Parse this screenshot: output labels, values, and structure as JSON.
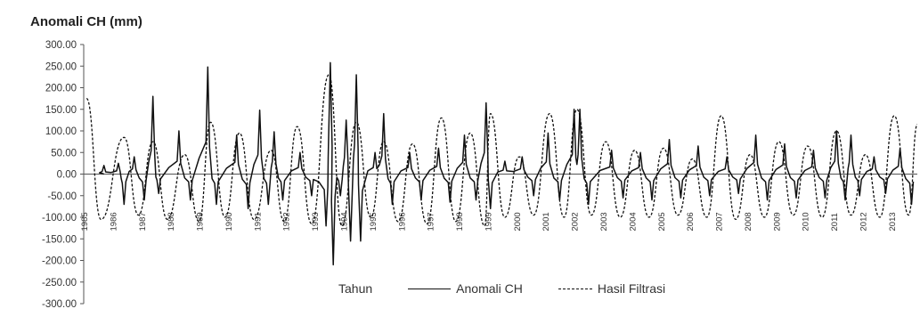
{
  "chart_data": {
    "type": "line",
    "title": "Anomali CH (mm)",
    "xlabel": "Tahun",
    "ylabel": "",
    "ylim": [
      -300,
      300
    ],
    "yticks": [
      "300.00",
      "250.00",
      "200.00",
      "150.00",
      "100.00",
      "50.00",
      "0.00",
      "-50.00",
      "-100.00",
      "-150.00",
      "-200.00",
      "-250.00",
      "-300.00"
    ],
    "x_tick_labels": [
      "1985",
      "1986",
      "1987",
      "1988",
      "1989",
      "1990",
      "1991",
      "1992",
      "1993",
      "1994",
      "1995",
      "1996",
      "1997",
      "1998",
      "1999",
      "2000",
      "2001",
      "2002",
      "2003",
      "2004",
      "2005",
      "2006",
      "2007",
      "2008",
      "2009",
      "2010",
      "2011",
      "2012",
      "2013"
    ],
    "x_start": 1985,
    "x_end": 2013.9,
    "series": [
      {
        "name": "Anomali CH",
        "style": "solid",
        "peaks": [
          {
            "x": 1985.7,
            "y": 20
          },
          {
            "x": 1986.2,
            "y": 25
          },
          {
            "x": 1986.4,
            "y": -70
          },
          {
            "x": 1986.75,
            "y": 40
          },
          {
            "x": 1987.1,
            "y": -60
          },
          {
            "x": 1987.4,
            "y": 180
          },
          {
            "x": 1987.6,
            "y": -45
          },
          {
            "x": 1988.3,
            "y": 100
          },
          {
            "x": 1988.7,
            "y": -60
          },
          {
            "x": 1989.3,
            "y": 248
          },
          {
            "x": 1989.6,
            "y": -70
          },
          {
            "x": 1990.3,
            "y": 90
          },
          {
            "x": 1990.7,
            "y": -80
          },
          {
            "x": 1991.1,
            "y": 148
          },
          {
            "x": 1991.4,
            "y": -70
          },
          {
            "x": 1991.6,
            "y": 98
          },
          {
            "x": 1991.9,
            "y": -60
          },
          {
            "x": 1992.5,
            "y": 50
          },
          {
            "x": 1992.9,
            "y": -50
          },
          {
            "x": 1993.4,
            "y": -120
          },
          {
            "x": 1993.55,
            "y": 258
          },
          {
            "x": 1993.65,
            "y": -210
          },
          {
            "x": 1993.9,
            "y": -50
          },
          {
            "x": 1994.1,
            "y": 125
          },
          {
            "x": 1994.25,
            "y": -155
          },
          {
            "x": 1994.45,
            "y": 230
          },
          {
            "x": 1994.6,
            "y": -155
          },
          {
            "x": 1995.1,
            "y": 50
          },
          {
            "x": 1995.4,
            "y": 140
          },
          {
            "x": 1995.7,
            "y": -70
          },
          {
            "x": 1996.3,
            "y": 50
          },
          {
            "x": 1996.7,
            "y": -60
          },
          {
            "x": 1997.3,
            "y": 60
          },
          {
            "x": 1997.7,
            "y": -65
          },
          {
            "x": 1998.2,
            "y": 90
          },
          {
            "x": 1998.6,
            "y": -60
          },
          {
            "x": 1998.95,
            "y": 165
          },
          {
            "x": 1999.1,
            "y": -80
          },
          {
            "x": 1999.6,
            "y": 30
          },
          {
            "x": 2000.2,
            "y": 40
          },
          {
            "x": 2000.6,
            "y": -50
          },
          {
            "x": 2001.1,
            "y": 95
          },
          {
            "x": 2001.5,
            "y": -60
          },
          {
            "x": 2002.0,
            "y": 150
          },
          {
            "x": 2002.2,
            "y": 150
          },
          {
            "x": 2002.5,
            "y": -70
          },
          {
            "x": 2003.3,
            "y": 55
          },
          {
            "x": 2003.7,
            "y": -55
          },
          {
            "x": 2004.3,
            "y": 50
          },
          {
            "x": 2004.7,
            "y": -60
          },
          {
            "x": 2005.3,
            "y": 80
          },
          {
            "x": 2005.7,
            "y": -55
          },
          {
            "x": 2006.3,
            "y": 65
          },
          {
            "x": 2006.7,
            "y": -50
          },
          {
            "x": 2007.3,
            "y": 40
          },
          {
            "x": 2007.7,
            "y": -45
          },
          {
            "x": 2008.3,
            "y": 90
          },
          {
            "x": 2008.7,
            "y": -60
          },
          {
            "x": 2009.3,
            "y": 70
          },
          {
            "x": 2009.7,
            "y": -55
          },
          {
            "x": 2010.3,
            "y": 55
          },
          {
            "x": 2010.7,
            "y": -55
          },
          {
            "x": 2011.1,
            "y": 100
          },
          {
            "x": 2011.4,
            "y": -60
          },
          {
            "x": 2011.6,
            "y": 90
          },
          {
            "x": 2011.9,
            "y": -50
          },
          {
            "x": 2012.4,
            "y": 40
          },
          {
            "x": 2012.8,
            "y": -45
          },
          {
            "x": 2013.3,
            "y": 60
          },
          {
            "x": 2013.7,
            "y": -70
          }
        ]
      },
      {
        "name": "Hasil Filtrasi",
        "style": "dashed",
        "peaks": [
          {
            "x": 1985.1,
            "y": 175
          },
          {
            "x": 1985.6,
            "y": -105
          },
          {
            "x": 1986.4,
            "y": 85
          },
          {
            "x": 1986.9,
            "y": -95
          },
          {
            "x": 1987.4,
            "y": 75
          },
          {
            "x": 1987.9,
            "y": -105
          },
          {
            "x": 1988.5,
            "y": 45
          },
          {
            "x": 1989.0,
            "y": -110
          },
          {
            "x": 1989.4,
            "y": 120
          },
          {
            "x": 1989.9,
            "y": -100
          },
          {
            "x": 1990.4,
            "y": 95
          },
          {
            "x": 1990.9,
            "y": -105
          },
          {
            "x": 1991.5,
            "y": 55
          },
          {
            "x": 1991.95,
            "y": -110
          },
          {
            "x": 1992.4,
            "y": 110
          },
          {
            "x": 1992.9,
            "y": -115
          },
          {
            "x": 1993.5,
            "y": 230
          },
          {
            "x": 1993.95,
            "y": -120
          },
          {
            "x": 1994.45,
            "y": 120
          },
          {
            "x": 1994.95,
            "y": -100
          },
          {
            "x": 1995.4,
            "y": 75
          },
          {
            "x": 1995.9,
            "y": -110
          },
          {
            "x": 1996.4,
            "y": 70
          },
          {
            "x": 1996.9,
            "y": -115
          },
          {
            "x": 1997.4,
            "y": 130
          },
          {
            "x": 1997.9,
            "y": -110
          },
          {
            "x": 1998.4,
            "y": 95
          },
          {
            "x": 1998.9,
            "y": -120
          },
          {
            "x": 1999.1,
            "y": 140
          },
          {
            "x": 1999.6,
            "y": -100
          },
          {
            "x": 2000.1,
            "y": 40
          },
          {
            "x": 2000.6,
            "y": -95
          },
          {
            "x": 2001.15,
            "y": 140
          },
          {
            "x": 2001.65,
            "y": -100
          },
          {
            "x": 2002.1,
            "y": 150
          },
          {
            "x": 2002.6,
            "y": -95
          },
          {
            "x": 2003.1,
            "y": 75
          },
          {
            "x": 2003.6,
            "y": -100
          },
          {
            "x": 2004.1,
            "y": 55
          },
          {
            "x": 2004.6,
            "y": -100
          },
          {
            "x": 2005.1,
            "y": 60
          },
          {
            "x": 2005.6,
            "y": -95
          },
          {
            "x": 2006.1,
            "y": 35
          },
          {
            "x": 2006.6,
            "y": -100
          },
          {
            "x": 2007.1,
            "y": 135
          },
          {
            "x": 2007.6,
            "y": -105
          },
          {
            "x": 2008.1,
            "y": 45
          },
          {
            "x": 2008.6,
            "y": -100
          },
          {
            "x": 2009.1,
            "y": 75
          },
          {
            "x": 2009.6,
            "y": -95
          },
          {
            "x": 2010.1,
            "y": 65
          },
          {
            "x": 2010.6,
            "y": -100
          },
          {
            "x": 2011.1,
            "y": 100
          },
          {
            "x": 2011.6,
            "y": -95
          },
          {
            "x": 2012.1,
            "y": 45
          },
          {
            "x": 2012.6,
            "y": -100
          },
          {
            "x": 2013.1,
            "y": 135
          },
          {
            "x": 2013.6,
            "y": -95
          },
          {
            "x": 2013.9,
            "y": 115
          }
        ]
      }
    ],
    "legend": "bottom-center",
    "grid": false
  }
}
